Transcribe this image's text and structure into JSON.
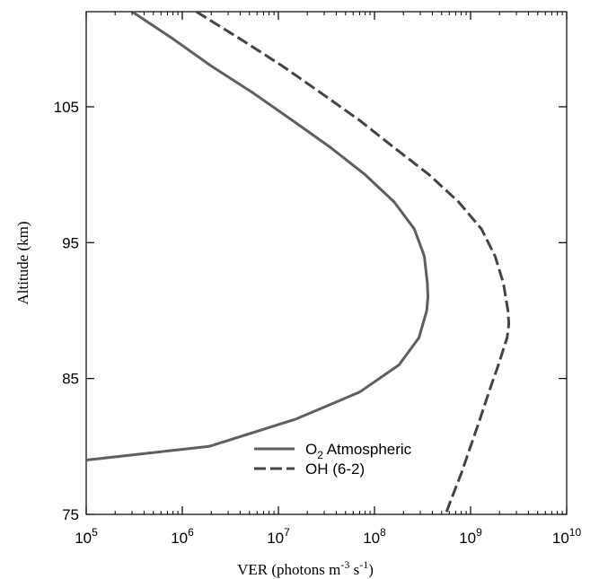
{
  "chart_data": {
    "type": "line",
    "title": "",
    "xlabel": {
      "prefix": "VER (photons m",
      "sup1": "-3",
      "middle": " s",
      "sup2": "-1",
      "suffix": ")"
    },
    "ylabel": "Altitude (km)",
    "xscale": "log",
    "xlim": [
      100000,
      10000000000
    ],
    "ylim": [
      75,
      112
    ],
    "x_ticks": [
      {
        "value": 100000,
        "base": "10",
        "exp": "5"
      },
      {
        "value": 1000000,
        "base": "10",
        "exp": "6"
      },
      {
        "value": 10000000,
        "base": "10",
        "exp": "7"
      },
      {
        "value": 100000000,
        "base": "10",
        "exp": "8"
      },
      {
        "value": 1000000000,
        "base": "10",
        "exp": "9"
      },
      {
        "value": 10000000000,
        "base": "10",
        "exp": "10"
      }
    ],
    "y_ticks": [
      {
        "value": 75,
        "label": "75"
      },
      {
        "value": 85,
        "label": "85"
      },
      {
        "value": 95,
        "label": "95"
      },
      {
        "value": 105,
        "label": "105"
      }
    ],
    "grid": false,
    "legend_position": "bottom-right",
    "series": [
      {
        "name_main": "O",
        "name_sub": "2",
        "name_rest": " Atmospheric",
        "style": "solid",
        "color": "#5f5f5f",
        "points": [
          [
            112,
            300000
          ],
          [
            110,
            800000
          ],
          [
            108,
            2000000
          ],
          [
            106,
            5500000
          ],
          [
            104,
            14000000
          ],
          [
            102,
            35000000
          ],
          [
            100,
            80000000
          ],
          [
            98,
            160000000
          ],
          [
            96,
            260000000
          ],
          [
            94,
            330000000
          ],
          [
            92,
            355000000
          ],
          [
            91,
            360000000
          ],
          [
            90,
            350000000
          ],
          [
            88,
            290000000
          ],
          [
            86,
            180000000
          ],
          [
            84,
            70000000
          ],
          [
            82,
            15000000
          ],
          [
            80,
            1900000
          ],
          [
            79,
            100000
          ]
        ]
      },
      {
        "name_main": "OH (6-2)",
        "name_sub": "",
        "name_rest": "",
        "style": "dashed",
        "color": "#444444",
        "points": [
          [
            112,
            1400000
          ],
          [
            110,
            4000000
          ],
          [
            108,
            11000000
          ],
          [
            106,
            28000000
          ],
          [
            104,
            70000000
          ],
          [
            102,
            160000000
          ],
          [
            100,
            370000000
          ],
          [
            98,
            750000000
          ],
          [
            96,
            1300000000
          ],
          [
            94,
            1800000000
          ],
          [
            92,
            2200000000
          ],
          [
            90,
            2450000000
          ],
          [
            89,
            2500000000
          ],
          [
            88,
            2400000000
          ],
          [
            86,
            1950000000
          ],
          [
            84,
            1550000000
          ],
          [
            82,
            1250000000
          ],
          [
            80,
            1000000000
          ],
          [
            78,
            800000000
          ],
          [
            76,
            620000000
          ],
          [
            75,
            550000000
          ]
        ]
      }
    ]
  }
}
